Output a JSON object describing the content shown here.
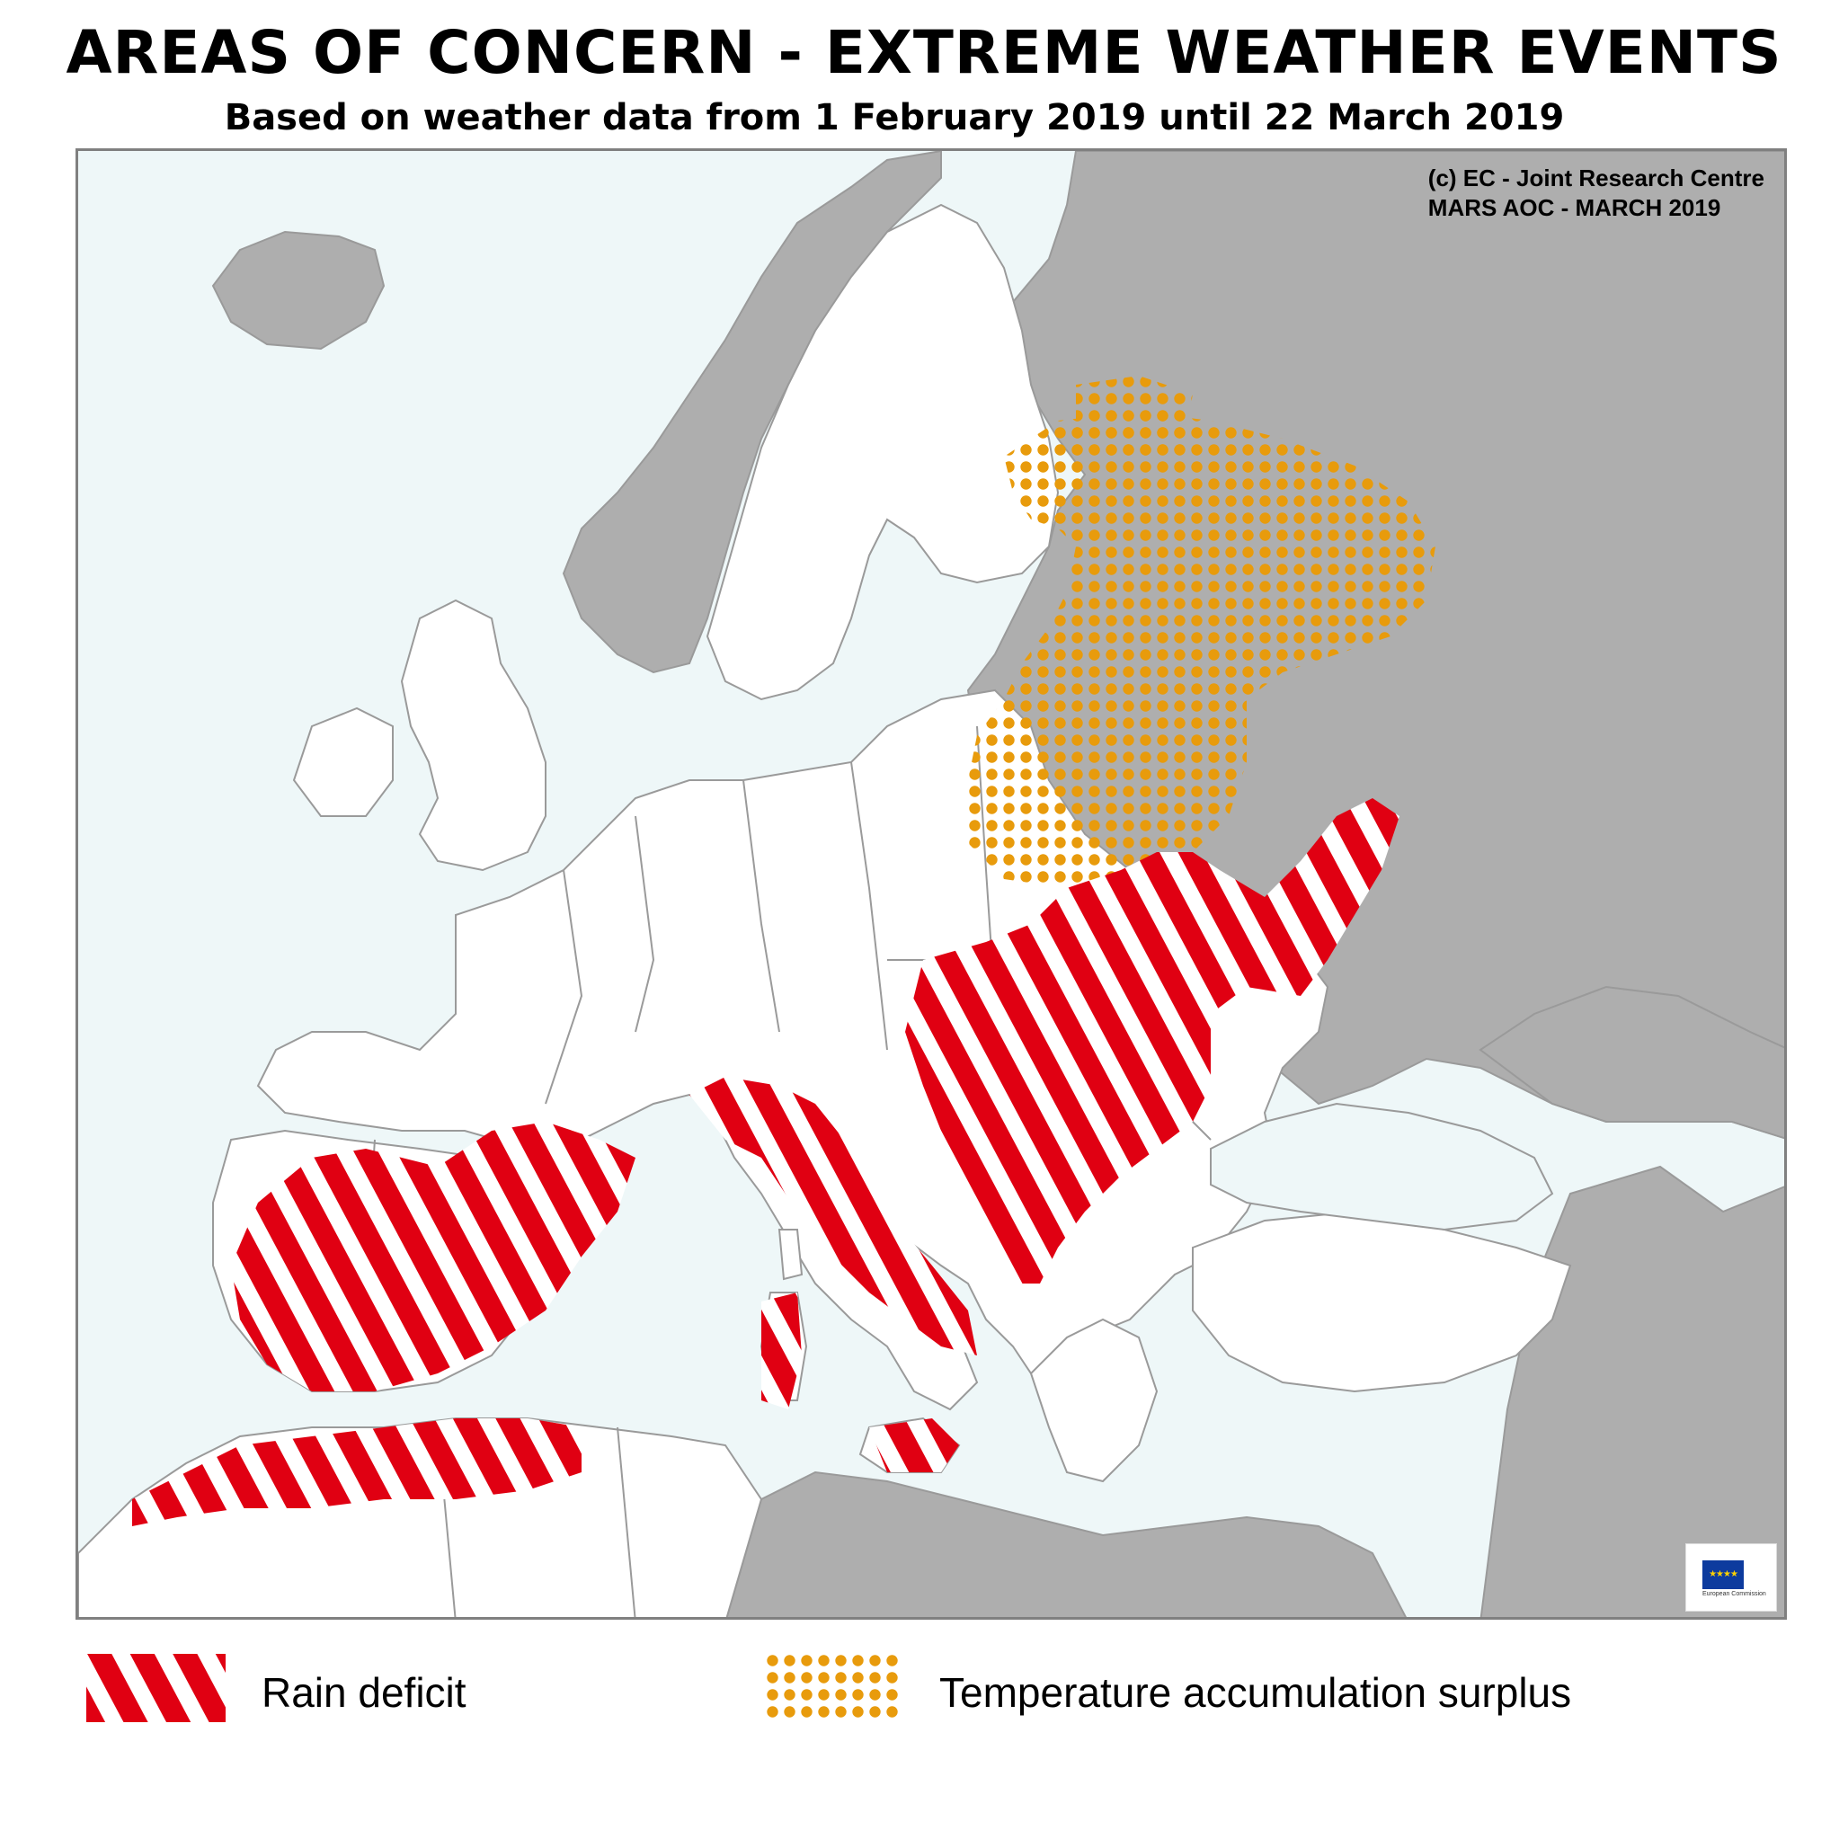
{
  "title": "AREAS OF CONCERN - EXTREME WEATHER EVENTS",
  "subtitle": "Based on weather data from 1 February 2019 until 22 March 2019",
  "credit": {
    "line1": "(c) EC - Joint Research Centre",
    "line2": "MARS AOC - MARCH 2019"
  },
  "logo": {
    "name": "European Commission"
  },
  "legend": [
    {
      "label": "Rain deficit",
      "pattern": "red-white-diagonal-stripes",
      "color": "#e00012"
    },
    {
      "label": "Temperature accumulation surplus",
      "pattern": "orange-dots",
      "color": "#e89b0c"
    }
  ],
  "colors": {
    "sea": "#eef7f8",
    "land_in_scope": "#ffffff",
    "land_out_of_scope": "#aeaeae",
    "borders": "#9a9a9a",
    "frame": "#808080"
  }
}
